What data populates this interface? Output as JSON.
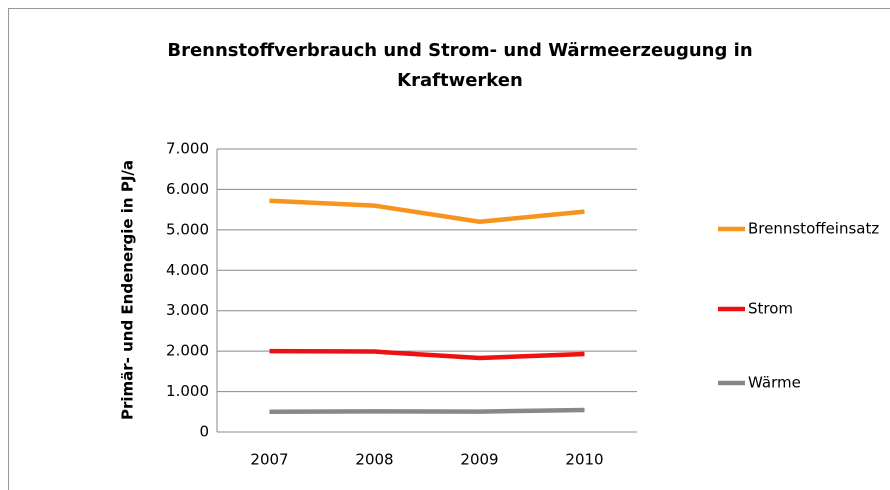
{
  "chart_data": {
    "type": "line",
    "title": "Brennstoffverbrauch und Strom- und Wärmeerzeugung in Kraftwerken",
    "y_label": "Primär- und Endenergie in PJ/a",
    "categories": [
      "2007",
      "2008",
      "2009",
      "2010"
    ],
    "series": [
      {
        "name": "Brennstoffeinsatz",
        "color": "#f7941d",
        "values": [
          5720,
          5600,
          5200,
          5450
        ]
      },
      {
        "name": "Strom",
        "color": "#ee1111",
        "values": [
          2000,
          1990,
          1830,
          1930
        ]
      },
      {
        "name": "Wärme",
        "color": "#888888",
        "values": [
          500,
          510,
          505,
          545
        ]
      }
    ],
    "ylim": [
      0,
      7000
    ],
    "yticks": [
      0,
      {
        "value": 1000,
        "label": "1.000"
      },
      {
        "value": 2000,
        "label": "2.000"
      },
      {
        "value": 3000,
        "label": "3.000"
      },
      {
        "value": 4000,
        "label": "4.000"
      },
      {
        "value": 5000,
        "label": "5.000"
      },
      {
        "value": 6000,
        "label": "6.000"
      },
      {
        "value": 7000,
        "label": "7.000"
      }
    ],
    "grid": true,
    "legend": "right"
  }
}
